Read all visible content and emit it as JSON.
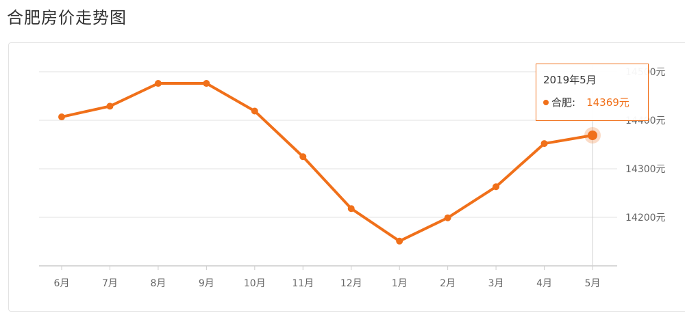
{
  "page": {
    "title": "合肥房价走势图"
  },
  "tooltip": {
    "date": "2019年5月",
    "series_label": "合肥:",
    "value_text": "14369元"
  },
  "chart_data": {
    "type": "line",
    "categories": [
      "6月",
      "7月",
      "8月",
      "9月",
      "10月",
      "11月",
      "12月",
      "1月",
      "2月",
      "3月",
      "4月",
      "5月"
    ],
    "series": [
      {
        "name": "合肥",
        "values": [
          14407,
          14429,
          14476,
          14476,
          14419,
          14325,
          14218,
          14151,
          14199,
          14263,
          14352,
          14369
        ]
      }
    ],
    "ylim": [
      14100,
      14500
    ],
    "yticks": [
      14200,
      14300,
      14400,
      14500
    ],
    "ytick_labels": [
      "14200元",
      "14300元",
      "14400元",
      "14500元"
    ],
    "highlight_index": 11,
    "line_color": "#f0701a",
    "grid": true
  }
}
